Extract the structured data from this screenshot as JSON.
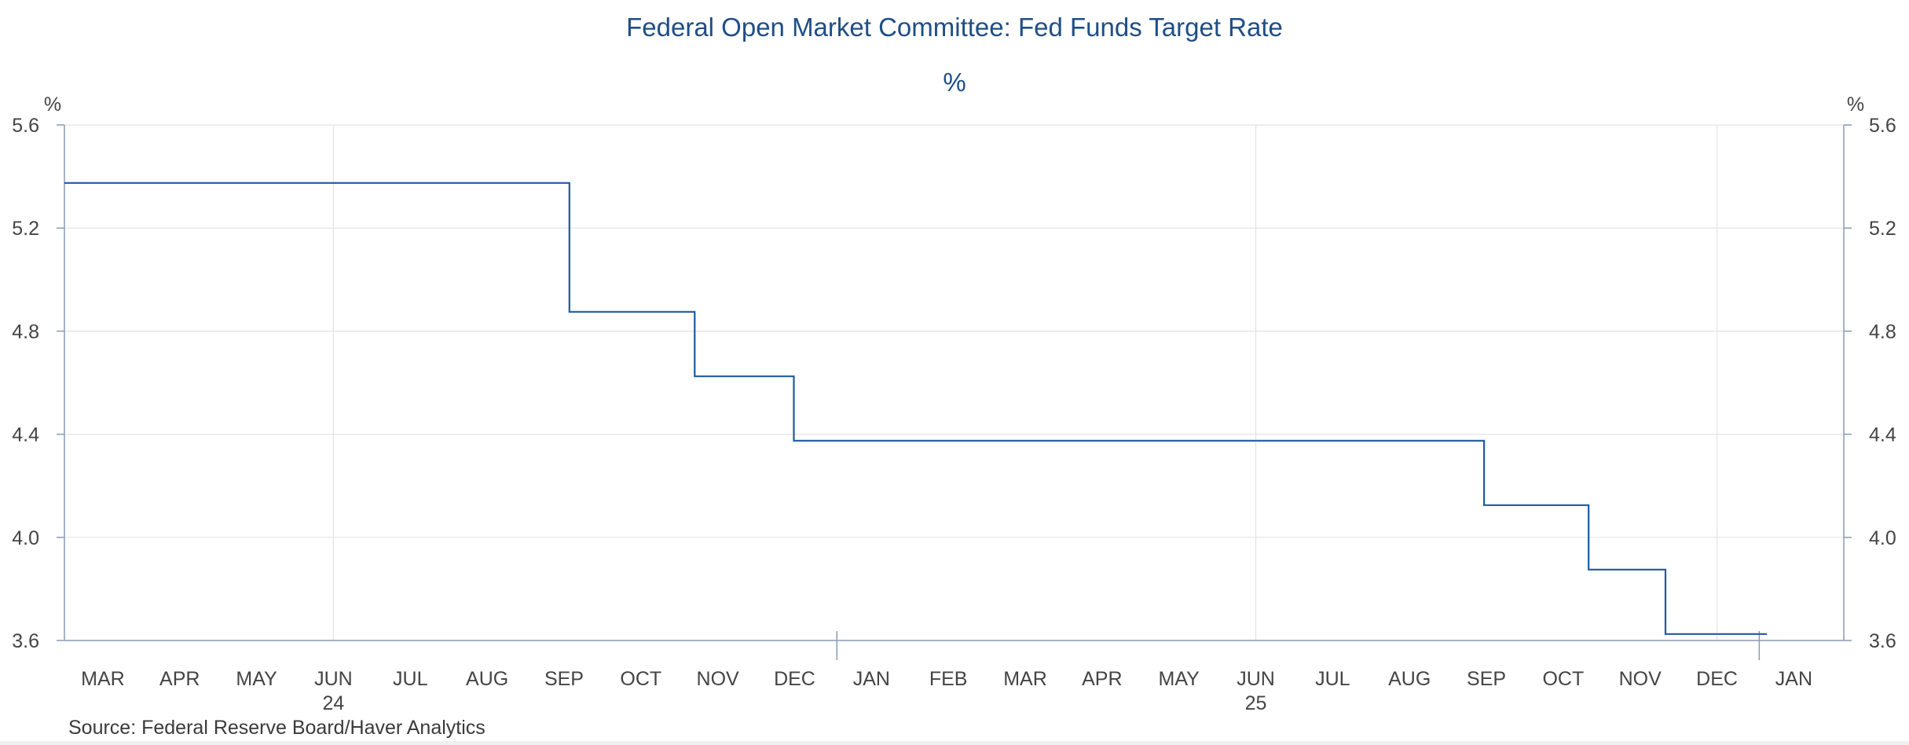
{
  "chart_data": {
    "type": "line",
    "step": true,
    "title": "Federal Open Market Committee: Fed Funds Target Rate",
    "subtitle": "%",
    "ylabel_left": "%",
    "ylabel_right": "%",
    "ylim": [
      3.6,
      5.6
    ],
    "yticks": [
      3.6,
      4.0,
      4.4,
      4.8,
      5.2,
      5.6
    ],
    "ytick_labels": [
      "3.6",
      "4.0",
      "4.4",
      "4.8",
      "5.2",
      "5.6"
    ],
    "x_unit": "months since Mar 2024",
    "xlim": [
      -0.5,
      22.65
    ],
    "month_labels": [
      "MAR",
      "APR",
      "MAY",
      "JUN",
      "JUL",
      "AUG",
      "SEP",
      "OCT",
      "NOV",
      "DEC",
      "JAN",
      "FEB",
      "MAR",
      "APR",
      "MAY",
      "JUN",
      "JUL",
      "AUG",
      "SEP",
      "OCT",
      "NOV",
      "DEC",
      "JAN"
    ],
    "year_labels": [
      {
        "label": "24",
        "x": 3.0
      },
      {
        "label": "25",
        "x": 15.0
      }
    ],
    "vertical_gridlines": [
      3.0,
      15.0,
      21.0
    ],
    "year_boundary_ticks": [
      9.55,
      21.55
    ],
    "grid": true,
    "series": [
      {
        "name": "Fed Funds Target Rate",
        "color": "#1f5a9e",
        "points": [
          {
            "x": -0.5,
            "y": 5.375
          },
          {
            "x": 6.07,
            "y": 5.375
          },
          {
            "x": 6.07,
            "y": 4.875
          },
          {
            "x": 7.7,
            "y": 4.875
          },
          {
            "x": 7.7,
            "y": 4.625
          },
          {
            "x": 8.99,
            "y": 4.625
          },
          {
            "x": 8.99,
            "y": 4.375
          },
          {
            "x": 17.97,
            "y": 4.375
          },
          {
            "x": 17.97,
            "y": 4.125
          },
          {
            "x": 19.33,
            "y": 4.125
          },
          {
            "x": 19.33,
            "y": 3.875
          },
          {
            "x": 20.33,
            "y": 3.875
          },
          {
            "x": 20.33,
            "y": 3.625
          },
          {
            "x": 21.65,
            "y": 3.625
          }
        ]
      }
    ]
  },
  "source": "Source:  Federal Reserve Board/Haver Analytics"
}
